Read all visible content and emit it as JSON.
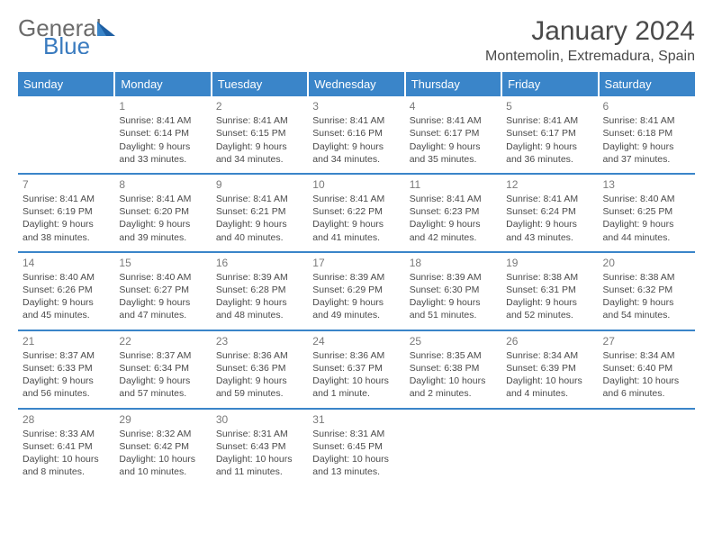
{
  "logo": {
    "part1": "General",
    "part2": "Blue"
  },
  "title": "January 2024",
  "location": "Montemolin, Extremadura, Spain",
  "headers": [
    "Sunday",
    "Monday",
    "Tuesday",
    "Wednesday",
    "Thursday",
    "Friday",
    "Saturday"
  ],
  "colors": {
    "header_bg": "#3a85c9",
    "brand_blue": "#3a7bbf",
    "text": "#4a4a4a"
  },
  "weeks": [
    [
      {
        "num": "",
        "sunrise": "",
        "sunset": "",
        "daylight": ""
      },
      {
        "num": "1",
        "sunrise": "Sunrise: 8:41 AM",
        "sunset": "Sunset: 6:14 PM",
        "daylight": "Daylight: 9 hours and 33 minutes."
      },
      {
        "num": "2",
        "sunrise": "Sunrise: 8:41 AM",
        "sunset": "Sunset: 6:15 PM",
        "daylight": "Daylight: 9 hours and 34 minutes."
      },
      {
        "num": "3",
        "sunrise": "Sunrise: 8:41 AM",
        "sunset": "Sunset: 6:16 PM",
        "daylight": "Daylight: 9 hours and 34 minutes."
      },
      {
        "num": "4",
        "sunrise": "Sunrise: 8:41 AM",
        "sunset": "Sunset: 6:17 PM",
        "daylight": "Daylight: 9 hours and 35 minutes."
      },
      {
        "num": "5",
        "sunrise": "Sunrise: 8:41 AM",
        "sunset": "Sunset: 6:17 PM",
        "daylight": "Daylight: 9 hours and 36 minutes."
      },
      {
        "num": "6",
        "sunrise": "Sunrise: 8:41 AM",
        "sunset": "Sunset: 6:18 PM",
        "daylight": "Daylight: 9 hours and 37 minutes."
      }
    ],
    [
      {
        "num": "7",
        "sunrise": "Sunrise: 8:41 AM",
        "sunset": "Sunset: 6:19 PM",
        "daylight": "Daylight: 9 hours and 38 minutes."
      },
      {
        "num": "8",
        "sunrise": "Sunrise: 8:41 AM",
        "sunset": "Sunset: 6:20 PM",
        "daylight": "Daylight: 9 hours and 39 minutes."
      },
      {
        "num": "9",
        "sunrise": "Sunrise: 8:41 AM",
        "sunset": "Sunset: 6:21 PM",
        "daylight": "Daylight: 9 hours and 40 minutes."
      },
      {
        "num": "10",
        "sunrise": "Sunrise: 8:41 AM",
        "sunset": "Sunset: 6:22 PM",
        "daylight": "Daylight: 9 hours and 41 minutes."
      },
      {
        "num": "11",
        "sunrise": "Sunrise: 8:41 AM",
        "sunset": "Sunset: 6:23 PM",
        "daylight": "Daylight: 9 hours and 42 minutes."
      },
      {
        "num": "12",
        "sunrise": "Sunrise: 8:41 AM",
        "sunset": "Sunset: 6:24 PM",
        "daylight": "Daylight: 9 hours and 43 minutes."
      },
      {
        "num": "13",
        "sunrise": "Sunrise: 8:40 AM",
        "sunset": "Sunset: 6:25 PM",
        "daylight": "Daylight: 9 hours and 44 minutes."
      }
    ],
    [
      {
        "num": "14",
        "sunrise": "Sunrise: 8:40 AM",
        "sunset": "Sunset: 6:26 PM",
        "daylight": "Daylight: 9 hours and 45 minutes."
      },
      {
        "num": "15",
        "sunrise": "Sunrise: 8:40 AM",
        "sunset": "Sunset: 6:27 PM",
        "daylight": "Daylight: 9 hours and 47 minutes."
      },
      {
        "num": "16",
        "sunrise": "Sunrise: 8:39 AM",
        "sunset": "Sunset: 6:28 PM",
        "daylight": "Daylight: 9 hours and 48 minutes."
      },
      {
        "num": "17",
        "sunrise": "Sunrise: 8:39 AM",
        "sunset": "Sunset: 6:29 PM",
        "daylight": "Daylight: 9 hours and 49 minutes."
      },
      {
        "num": "18",
        "sunrise": "Sunrise: 8:39 AM",
        "sunset": "Sunset: 6:30 PM",
        "daylight": "Daylight: 9 hours and 51 minutes."
      },
      {
        "num": "19",
        "sunrise": "Sunrise: 8:38 AM",
        "sunset": "Sunset: 6:31 PM",
        "daylight": "Daylight: 9 hours and 52 minutes."
      },
      {
        "num": "20",
        "sunrise": "Sunrise: 8:38 AM",
        "sunset": "Sunset: 6:32 PM",
        "daylight": "Daylight: 9 hours and 54 minutes."
      }
    ],
    [
      {
        "num": "21",
        "sunrise": "Sunrise: 8:37 AM",
        "sunset": "Sunset: 6:33 PM",
        "daylight": "Daylight: 9 hours and 56 minutes."
      },
      {
        "num": "22",
        "sunrise": "Sunrise: 8:37 AM",
        "sunset": "Sunset: 6:34 PM",
        "daylight": "Daylight: 9 hours and 57 minutes."
      },
      {
        "num": "23",
        "sunrise": "Sunrise: 8:36 AM",
        "sunset": "Sunset: 6:36 PM",
        "daylight": "Daylight: 9 hours and 59 minutes."
      },
      {
        "num": "24",
        "sunrise": "Sunrise: 8:36 AM",
        "sunset": "Sunset: 6:37 PM",
        "daylight": "Daylight: 10 hours and 1 minute."
      },
      {
        "num": "25",
        "sunrise": "Sunrise: 8:35 AM",
        "sunset": "Sunset: 6:38 PM",
        "daylight": "Daylight: 10 hours and 2 minutes."
      },
      {
        "num": "26",
        "sunrise": "Sunrise: 8:34 AM",
        "sunset": "Sunset: 6:39 PM",
        "daylight": "Daylight: 10 hours and 4 minutes."
      },
      {
        "num": "27",
        "sunrise": "Sunrise: 8:34 AM",
        "sunset": "Sunset: 6:40 PM",
        "daylight": "Daylight: 10 hours and 6 minutes."
      }
    ],
    [
      {
        "num": "28",
        "sunrise": "Sunrise: 8:33 AM",
        "sunset": "Sunset: 6:41 PM",
        "daylight": "Daylight: 10 hours and 8 minutes."
      },
      {
        "num": "29",
        "sunrise": "Sunrise: 8:32 AM",
        "sunset": "Sunset: 6:42 PM",
        "daylight": "Daylight: 10 hours and 10 minutes."
      },
      {
        "num": "30",
        "sunrise": "Sunrise: 8:31 AM",
        "sunset": "Sunset: 6:43 PM",
        "daylight": "Daylight: 10 hours and 11 minutes."
      },
      {
        "num": "31",
        "sunrise": "Sunrise: 8:31 AM",
        "sunset": "Sunset: 6:45 PM",
        "daylight": "Daylight: 10 hours and 13 minutes."
      },
      {
        "num": "",
        "sunrise": "",
        "sunset": "",
        "daylight": ""
      },
      {
        "num": "",
        "sunrise": "",
        "sunset": "",
        "daylight": ""
      },
      {
        "num": "",
        "sunrise": "",
        "sunset": "",
        "daylight": ""
      }
    ]
  ]
}
